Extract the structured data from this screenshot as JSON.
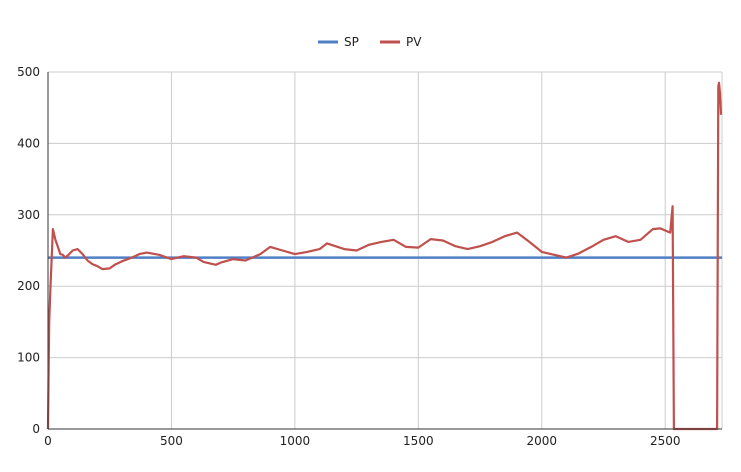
{
  "chart_data": {
    "type": "line",
    "title": "",
    "xlabel": "",
    "ylabel": "",
    "xlim": [
      0,
      2730
    ],
    "ylim": [
      0,
      500
    ],
    "xticks": [
      0,
      500,
      1000,
      1500,
      2000,
      2500
    ],
    "yticks": [
      0,
      100,
      200,
      300,
      400,
      500
    ],
    "grid": true,
    "legend": "top-center",
    "series": [
      {
        "name": "SP",
        "color": "#4f7fc4",
        "x": [
          0,
          2730
        ],
        "y": [
          240,
          240
        ]
      },
      {
        "name": "PV",
        "color": "#c0504d",
        "x": [
          0,
          5,
          10,
          15,
          20,
          30,
          40,
          50,
          60,
          70,
          80,
          100,
          120,
          140,
          160,
          180,
          200,
          220,
          250,
          270,
          300,
          340,
          370,
          400,
          450,
          500,
          550,
          600,
          630,
          680,
          700,
          750,
          800,
          860,
          900,
          950,
          1000,
          1050,
          1100,
          1130,
          1200,
          1250,
          1300,
          1350,
          1400,
          1450,
          1500,
          1550,
          1600,
          1650,
          1700,
          1750,
          1800,
          1850,
          1900,
          1950,
          2000,
          2050,
          2100,
          2150,
          2200,
          2250,
          2300,
          2350,
          2400,
          2450,
          2480,
          2520,
          2530,
          2535,
          2540,
          2700,
          2710,
          2715,
          2718,
          2722,
          2726
        ],
        "y": [
          0,
          150,
          200,
          240,
          280,
          265,
          255,
          245,
          244,
          240,
          243,
          250,
          252,
          245,
          236,
          231,
          228,
          224,
          225,
          230,
          235,
          240,
          245,
          247,
          244,
          238,
          242,
          240,
          234,
          230,
          233,
          238,
          236,
          245,
          255,
          250,
          245,
          248,
          252,
          260,
          252,
          250,
          258,
          262,
          265,
          255,
          254,
          266,
          264,
          256,
          252,
          256,
          262,
          270,
          275,
          262,
          248,
          244,
          240,
          246,
          255,
          265,
          270,
          262,
          265,
          280,
          281,
          275,
          312,
          0,
          0,
          0,
          0,
          480,
          485,
          470,
          440
        ]
      }
    ]
  }
}
